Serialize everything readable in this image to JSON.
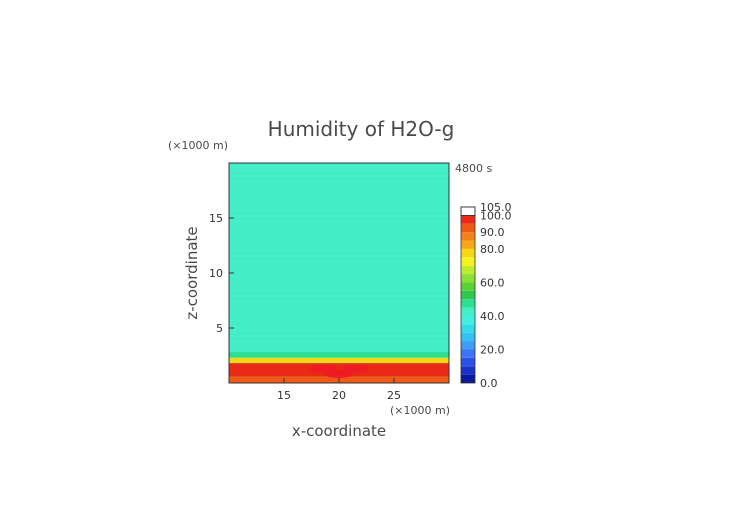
{
  "chart_data": {
    "type": "heatmap",
    "title": "Humidity of H2O-g",
    "time_label": "4800 s",
    "xlabel": "x-coordinate",
    "ylabel": "z-coordinate",
    "x_unit": "(×1000 m)",
    "y_unit": "(×1000 m)",
    "xlim": [
      10,
      30
    ],
    "ylim": [
      0,
      20
    ],
    "x_ticks": [
      15,
      20,
      25
    ],
    "y_ticks": [
      5,
      10,
      15
    ],
    "x_tick_labels": [
      "15",
      "20",
      "25"
    ],
    "y_tick_labels": [
      "5",
      "10",
      "15"
    ],
    "colorbar": {
      "labels": [
        "105.0",
        "100.0",
        "90.0",
        "80.0",
        "60.0",
        "40.0",
        "20.0",
        "0.0"
      ],
      "label_values": [
        105,
        100,
        90,
        80,
        60,
        40,
        20,
        0
      ],
      "levels": [
        0,
        5,
        10,
        15,
        20,
        25,
        30,
        35,
        40,
        45,
        50,
        55,
        60,
        65,
        70,
        75,
        80,
        85,
        90,
        95,
        100,
        105
      ],
      "colors": [
        "#0a1a9c",
        "#1a32c8",
        "#2a52e6",
        "#3c74f4",
        "#3e9cf6",
        "#34c0f4",
        "#30dcea",
        "#3eeede",
        "#42eec4",
        "#2ade92",
        "#30c84c",
        "#5ad236",
        "#8ae034",
        "#c0ec30",
        "#f4f41c",
        "#f4d818",
        "#f4a818",
        "#f48218",
        "#f05a16",
        "#e82a16",
        "#ee1a24",
        "#ffffff"
      ]
    },
    "field": {
      "background_value": 41,
      "layers": [
        {
          "z_range": [
            2.3,
            2.8
          ],
          "value": 47
        },
        {
          "z_range": [
            1.8,
            2.3
          ],
          "value": 78
        },
        {
          "z_range": [
            0.6,
            1.8
          ],
          "value": 97
        },
        {
          "z_range": [
            0.0,
            0.6
          ],
          "value": 92
        }
      ],
      "blobs": [
        {
          "x": 18.5,
          "z": 1.3,
          "value": 103
        },
        {
          "x": 21.5,
          "z": 1.3,
          "value": 103
        },
        {
          "x": 20.0,
          "z": 0.8,
          "value": 104
        }
      ]
    }
  }
}
